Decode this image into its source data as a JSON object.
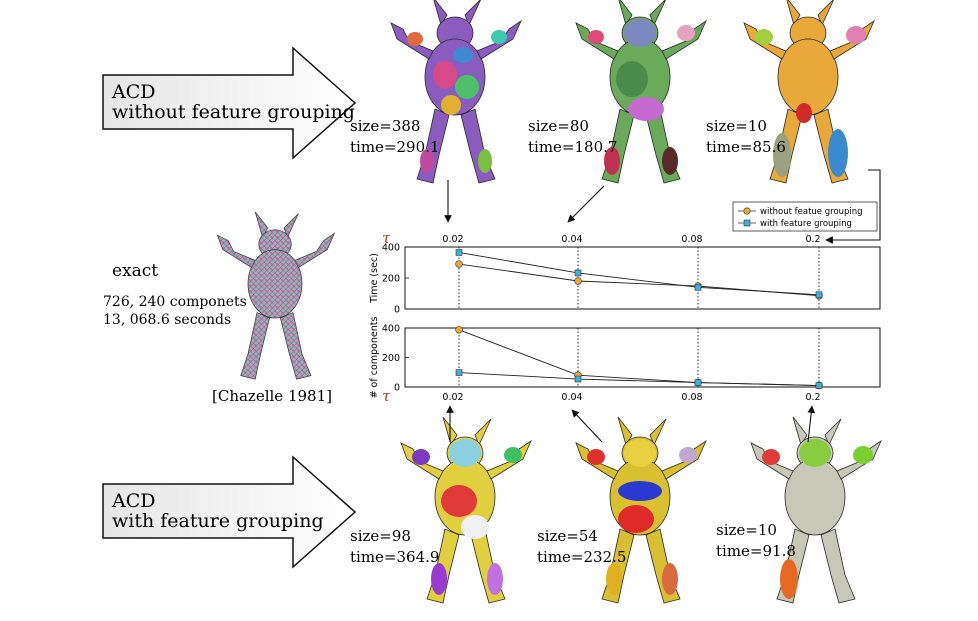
{
  "top_row": {
    "arrow_label_line1": "ACD",
    "arrow_label_line2": "without feature grouping",
    "models": [
      {
        "size": "size=388",
        "time": "time=290.1"
      },
      {
        "size": "size=80",
        "time": "time=180.7"
      },
      {
        "size": "size=10",
        "time": "time=85.6"
      }
    ]
  },
  "bottom_row": {
    "arrow_label_line1": "ACD",
    "arrow_label_line2": "with feature grouping",
    "models": [
      {
        "size": "size=98",
        "time": "time=364.9"
      },
      {
        "size": "size=54",
        "time": "time=232.5"
      },
      {
        "size": "size=10",
        "time": "time=91.8"
      }
    ]
  },
  "exact": {
    "title": "exact",
    "components": "726, 240 componets",
    "seconds": "13, 068.6 seconds",
    "citation": "[Chazelle 1981]"
  },
  "legend": {
    "without": "without featue grouping",
    "with": "with feature grouping"
  },
  "colors": {
    "without": "#f0a830",
    "with": "#3ab0e0",
    "tau": "#c0392b"
  },
  "chart_data": [
    {
      "type": "line",
      "x": [
        "0.02",
        "0.04",
        "0.08",
        "0.2"
      ],
      "x_label_symbol": "τ",
      "ylabel": "Time (sec)",
      "yticks": [
        "0",
        "200",
        "400"
      ],
      "ylim": [
        0,
        400
      ],
      "series": [
        {
          "name": "without featue grouping",
          "values": [
            290.1,
            180.7,
            148,
            85.6
          ]
        },
        {
          "name": "with feature grouping",
          "values": [
            364.9,
            232.5,
            140,
            91.8
          ]
        }
      ]
    },
    {
      "type": "line",
      "x": [
        "0.02",
        "0.04",
        "0.08",
        "0.2"
      ],
      "x_label_symbol": "τ",
      "ylabel": "# of components",
      "yticks": [
        "0",
        "200",
        "400"
      ],
      "ylim": [
        0,
        400
      ],
      "series": [
        {
          "name": "without featue grouping",
          "values": [
            388,
            80,
            30,
            10
          ]
        },
        {
          "name": "with feature grouping",
          "values": [
            98,
            54,
            30,
            10
          ]
        }
      ]
    }
  ]
}
